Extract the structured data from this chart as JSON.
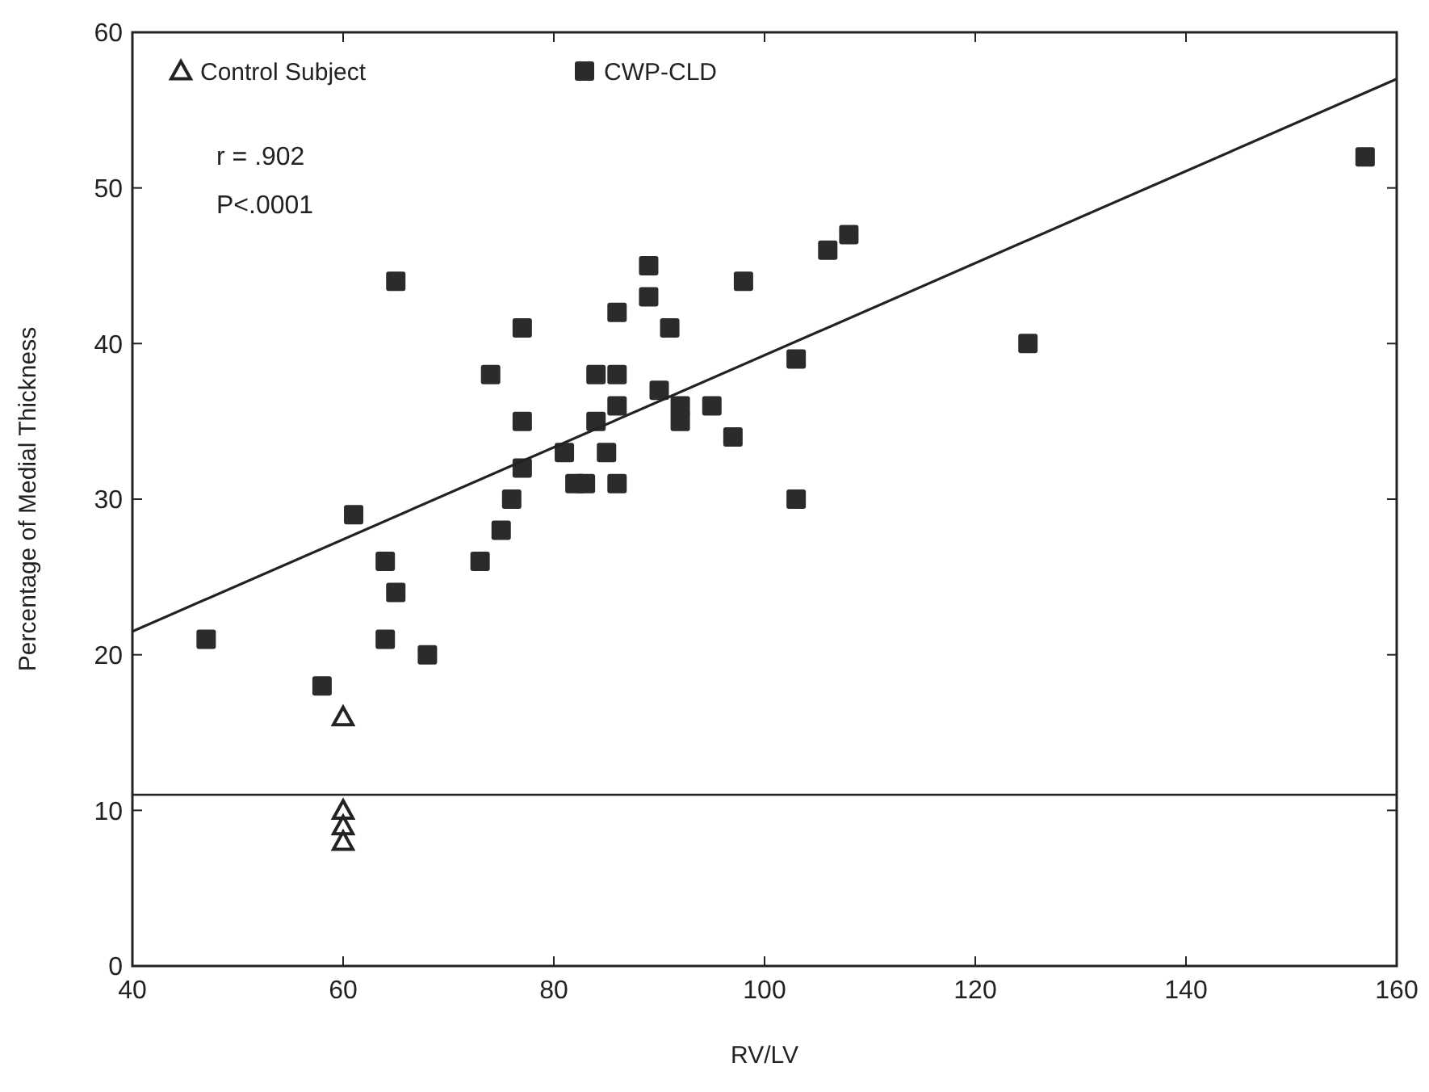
{
  "chart_data": {
    "type": "scatter",
    "xlabel": "RV/LV",
    "ylabel": "Percentage of Medial Thickness",
    "xlim": [
      40,
      160
    ],
    "xticks": [
      40,
      60,
      80,
      100,
      120,
      140,
      160
    ],
    "ylim": [
      0,
      60
    ],
    "yticks": [
      0,
      10,
      20,
      30,
      40,
      50,
      60
    ],
    "grid": false,
    "legend": "top left",
    "annotations": [
      "r = .902",
      "P<.0001"
    ],
    "ref_lines": [
      {
        "axis": "y",
        "value": 11,
        "color": "#222222"
      }
    ],
    "series": [
      {
        "name": "Control Subject",
        "marker": "triangle",
        "color": "#222222",
        "x": [
          60,
          60,
          60,
          60
        ],
        "values": [
          16,
          10,
          9,
          8
        ]
      },
      {
        "name": "CWP-CLD",
        "marker": "square",
        "color": "#2b2b2b",
        "x": [
          47,
          58,
          61,
          64,
          64,
          65,
          65,
          68,
          73,
          74,
          75,
          76,
          77,
          77,
          77,
          81,
          82,
          83,
          84,
          84,
          85,
          86,
          86,
          86,
          86,
          89,
          89,
          90,
          91,
          92,
          92,
          95,
          97,
          98,
          103,
          103,
          106,
          108,
          125,
          157
        ],
        "values": [
          21,
          18,
          29,
          26,
          21,
          24,
          44,
          20,
          26,
          38,
          28,
          30,
          41,
          35,
          32,
          33,
          31,
          31,
          38,
          35,
          33,
          42,
          38,
          36,
          31,
          45,
          43,
          37,
          41,
          36,
          35,
          36,
          34,
          44,
          39,
          30,
          46,
          47,
          40,
          52
        ]
      },
      {
        "type": "line",
        "color": "#222222",
        "line_style": "solid",
        "x": [
          40,
          160
        ],
        "values": [
          21.5,
          57
        ]
      }
    ]
  }
}
